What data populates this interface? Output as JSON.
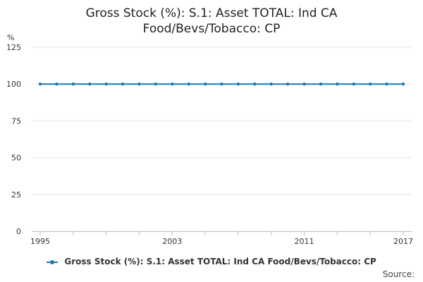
{
  "chart_data": {
    "type": "line",
    "title_lines": [
      "Gross Stock (%): S.1: Asset TOTAL: Ind CA",
      "Food/Bevs/Tobacco: CP"
    ],
    "ylabel": "%",
    "xlabel": "",
    "ylim": [
      0,
      125
    ],
    "yticks": [
      0,
      25,
      50,
      75,
      100,
      125
    ],
    "xlim": [
      1995,
      2017
    ],
    "xtick_labels": [
      1995,
      2003,
      2011,
      2017
    ],
    "grid": true,
    "legend_position": "bottom",
    "series": [
      {
        "name": "Gross Stock (%): S.1: Asset TOTAL: Ind CA Food/Bevs/Tobacco: CP",
        "color": "#1f77b4",
        "x": [
          1995,
          1996,
          1997,
          1998,
          1999,
          2000,
          2001,
          2002,
          2003,
          2004,
          2005,
          2006,
          2007,
          2008,
          2009,
          2010,
          2011,
          2012,
          2013,
          2014,
          2015,
          2016,
          2017
        ],
        "values": [
          100,
          100,
          100,
          100,
          100,
          100,
          100,
          100,
          100,
          100,
          100,
          100,
          100,
          100,
          100,
          100,
          100,
          100,
          100,
          100,
          100,
          100,
          100
        ]
      }
    ]
  },
  "source_label": "Source:"
}
